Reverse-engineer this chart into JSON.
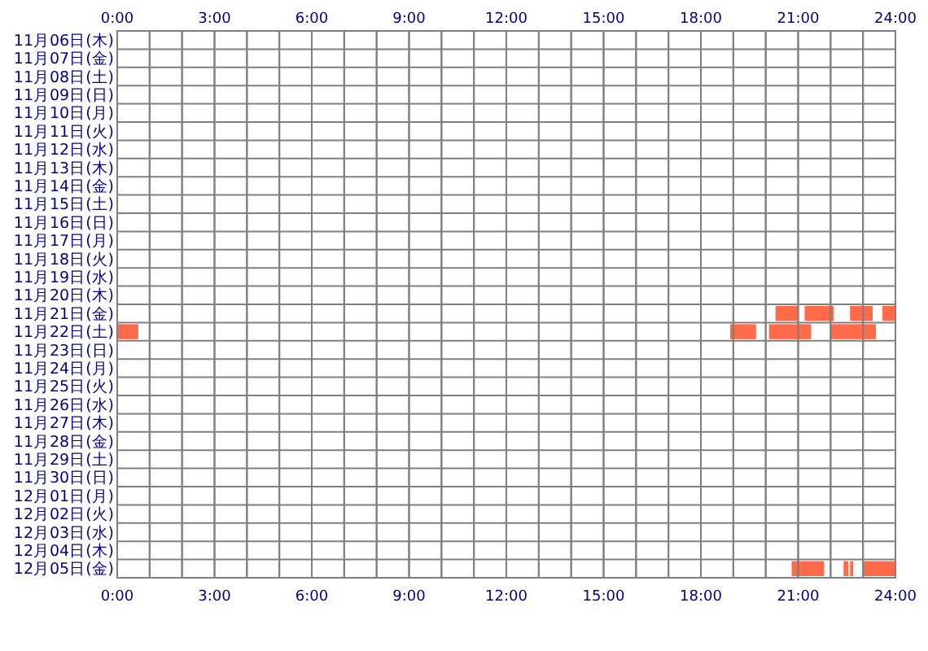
{
  "chart_data": {
    "type": "bar",
    "orientation": "horizontal",
    "grid": true,
    "categories": [
      "11月06日(木)",
      "11月07日(金)",
      "11月08日(土)",
      "11月09日(日)",
      "11月10日(月)",
      "11月11日(火)",
      "11月12日(水)",
      "11月13日(木)",
      "11月14日(金)",
      "11月15日(土)",
      "11月16日(日)",
      "11月17日(月)",
      "11月18日(火)",
      "11月19日(水)",
      "11月20日(木)",
      "11月21日(金)",
      "11月22日(土)",
      "11月23日(日)",
      "11月24日(月)",
      "11月25日(火)",
      "11月26日(水)",
      "11月27日(木)",
      "11月28日(金)",
      "11月29日(土)",
      "11月30日(日)",
      "12月01日(月)",
      "12月02日(火)",
      "12月03日(水)",
      "12月04日(木)",
      "12月05日(金)"
    ],
    "series": [
      {
        "color": "#ff6a48",
        "base": [
          null,
          null,
          null,
          null,
          null,
          null,
          null,
          null,
          null,
          null,
          null,
          null,
          null,
          null,
          null,
          20.3,
          0,
          null,
          null,
          null,
          null,
          null,
          null,
          null,
          null,
          null,
          null,
          null,
          null,
          20.8
        ],
        "values": [
          null,
          null,
          null,
          null,
          null,
          null,
          null,
          null,
          null,
          null,
          null,
          null,
          null,
          null,
          null,
          0.7,
          0.65,
          null,
          null,
          null,
          null,
          null,
          null,
          null,
          null,
          null,
          null,
          null,
          null,
          1.0
        ]
      },
      {
        "color": "#ff6a48",
        "base": [
          null,
          null,
          null,
          null,
          null,
          null,
          null,
          null,
          null,
          null,
          null,
          null,
          null,
          null,
          null,
          21.2,
          18.9,
          null,
          null,
          null,
          null,
          null,
          null,
          null,
          null,
          null,
          null,
          null,
          null,
          22.4
        ],
        "values": [
          null,
          null,
          null,
          null,
          null,
          null,
          null,
          null,
          null,
          null,
          null,
          null,
          null,
          null,
          null,
          0.9,
          0.8,
          null,
          null,
          null,
          null,
          null,
          null,
          null,
          null,
          null,
          null,
          null,
          null,
          0.15
        ]
      },
      {
        "color": "#ff6a48",
        "base": [
          null,
          null,
          null,
          null,
          null,
          null,
          null,
          null,
          null,
          null,
          null,
          null,
          null,
          null,
          null,
          22.6,
          20.1,
          null,
          null,
          null,
          null,
          null,
          null,
          null,
          null,
          null,
          null,
          null,
          null,
          22.6
        ],
        "values": [
          null,
          null,
          null,
          null,
          null,
          null,
          null,
          null,
          null,
          null,
          null,
          null,
          null,
          null,
          null,
          0.7,
          1.3,
          null,
          null,
          null,
          null,
          null,
          null,
          null,
          null,
          null,
          null,
          null,
          null,
          0.1
        ]
      },
      {
        "color": "#ff6a48",
        "base": [
          null,
          null,
          null,
          null,
          null,
          null,
          null,
          null,
          null,
          null,
          null,
          null,
          null,
          null,
          null,
          23.6,
          22.0,
          null,
          null,
          null,
          null,
          null,
          null,
          null,
          null,
          null,
          null,
          null,
          null,
          23.0
        ],
        "values": [
          null,
          null,
          null,
          null,
          null,
          null,
          null,
          null,
          null,
          null,
          null,
          null,
          null,
          null,
          null,
          0.4,
          1.4,
          null,
          null,
          null,
          null,
          null,
          null,
          null,
          null,
          null,
          null,
          null,
          null,
          1.0
        ]
      }
    ],
    "xlim": [
      0,
      24
    ],
    "xticks": [
      {
        "value": 0,
        "label": "0:00"
      },
      {
        "value": 1,
        "label": null
      },
      {
        "value": 2,
        "label": null
      },
      {
        "value": 3,
        "label": "3:00"
      },
      {
        "value": 4,
        "label": null
      },
      {
        "value": 5,
        "label": null
      },
      {
        "value": 6,
        "label": "6:00"
      },
      {
        "value": 7,
        "label": null
      },
      {
        "value": 8,
        "label": null
      },
      {
        "value": 9,
        "label": "9:00"
      },
      {
        "value": 10,
        "label": null
      },
      {
        "value": 11,
        "label": null
      },
      {
        "value": 12,
        "label": "12:00"
      },
      {
        "value": 13,
        "label": null
      },
      {
        "value": 14,
        "label": null
      },
      {
        "value": 15,
        "label": "15:00"
      },
      {
        "value": 16,
        "label": null
      },
      {
        "value": 17,
        "label": null
      },
      {
        "value": 18,
        "label": "18:00"
      },
      {
        "value": 19,
        "label": null
      },
      {
        "value": 20,
        "label": null
      },
      {
        "value": 21,
        "label": "21:00"
      },
      {
        "value": 22,
        "label": null
      },
      {
        "value": 23,
        "label": null
      },
      {
        "value": 24,
        "label": "24:00"
      }
    ],
    "x2lim": [
      0,
      24
    ],
    "x2ticks": [
      {
        "value": 0,
        "label": "0:00"
      },
      {
        "value": 1,
        "label": null
      },
      {
        "value": 2,
        "label": null
      },
      {
        "value": 3,
        "label": "3:00"
      },
      {
        "value": 4,
        "label": null
      },
      {
        "value": 5,
        "label": null
      },
      {
        "value": 6,
        "label": "6:00"
      },
      {
        "value": 7,
        "label": null
      },
      {
        "value": 8,
        "label": null
      },
      {
        "value": 9,
        "label": "9:00"
      },
      {
        "value": 10,
        "label": null
      },
      {
        "value": 11,
        "label": null
      },
      {
        "value": 12,
        "label": "12:00"
      },
      {
        "value": 13,
        "label": null
      },
      {
        "value": 14,
        "label": null
      },
      {
        "value": 15,
        "label": "15:00"
      },
      {
        "value": 16,
        "label": null
      },
      {
        "value": 17,
        "label": null
      },
      {
        "value": 18,
        "label": "18:00"
      },
      {
        "value": 19,
        "label": null
      },
      {
        "value": 20,
        "label": null
      },
      {
        "value": 21,
        "label": "21:00"
      },
      {
        "value": 22,
        "label": null
      },
      {
        "value": 23,
        "label": null
      },
      {
        "value": 24,
        "label": "24:00"
      }
    ]
  }
}
